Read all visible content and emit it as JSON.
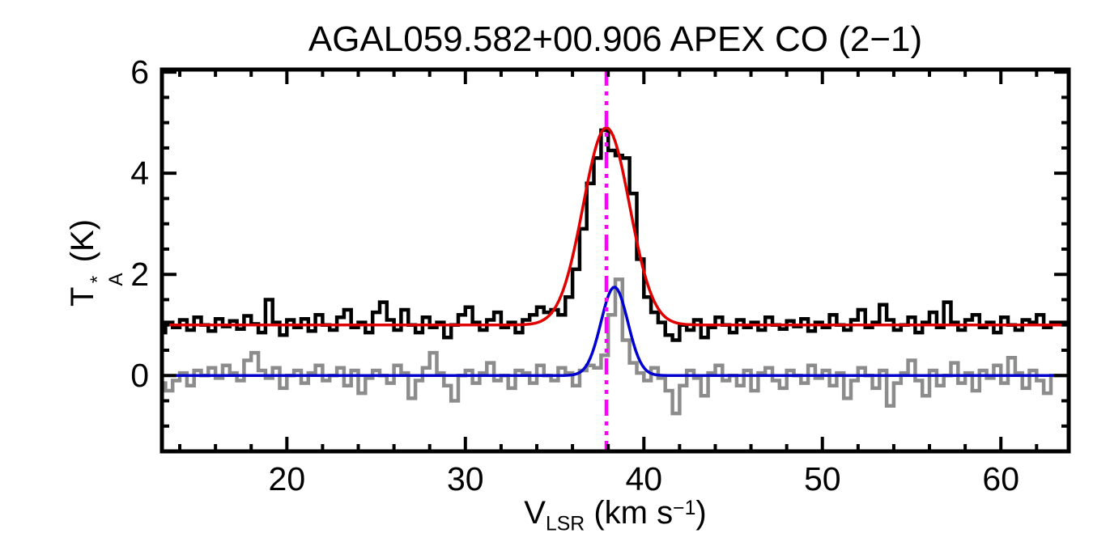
{
  "title": "AGAL059.582+00.906  APEX CO (2−1)",
  "chart_data": {
    "type": "line",
    "subtype": "spectral-line-histogram-with-gaussian-fits",
    "title": "AGAL059.582+00.906  APEX CO (2−1)",
    "xlabel_parts": {
      "v": "V",
      "sub": "LSR",
      "mid": " (km s",
      "sup": "−1",
      "end": ")"
    },
    "ylabel_parts": {
      "t": "T",
      "sup": "*",
      "sub": "A",
      "end": " (K)"
    },
    "xlim": [
      13.0,
      63.8
    ],
    "ylim": [
      -1.5,
      6.05
    ],
    "x_major_ticks": [
      20,
      30,
      40,
      50,
      60
    ],
    "x_minor_step": 2,
    "y_major_ticks": [
      0,
      2,
      4,
      6
    ],
    "y_minor_step": 0.5,
    "grid": false,
    "legend": false,
    "x_start": 13.0,
    "dx": 0.4,
    "series": [
      {
        "name": "observed-spectrum",
        "style": "histogram",
        "color": "#000000",
        "values": [
          0.85,
          1.05,
          0.95,
          1.1,
          0.9,
          1.15,
          1.0,
          0.88,
          1.12,
          0.97,
          1.08,
          0.92,
          1.18,
          1.02,
          0.85,
          1.5,
          1.05,
          0.8,
          1.1,
          0.95,
          1.12,
          0.88,
          1.2,
          1.0,
          0.9,
          1.15,
          1.3,
          0.95,
          1.05,
          0.85,
          1.25,
          1.45,
          1.1,
          0.9,
          1.3,
          1.0,
          0.85,
          1.15,
          0.95,
          1.05,
          0.75,
          1.0,
          1.2,
          1.35,
          1.05,
          0.9,
          1.1,
          1.25,
          0.95,
          1.05,
          0.85,
          1.1,
          1.2,
          1.35,
          1.25,
          1.3,
          1.2,
          1.55,
          2.1,
          2.9,
          3.8,
          4.3,
          4.85,
          4.45,
          4.35,
          4.3,
          3.6,
          2.3,
          1.55,
          1.25,
          1.05,
          0.8,
          0.7,
          1.0,
          0.9,
          1.1,
          0.75,
          0.95,
          1.15,
          1.0,
          0.85,
          1.1,
          0.95,
          1.05,
          0.9,
          1.15,
          1.0,
          0.92,
          1.08,
          0.97,
          1.12,
          0.88,
          1.05,
          0.95,
          1.2,
          1.0,
          0.9,
          1.1,
          1.3,
          0.95,
          1.05,
          1.4,
          1.1,
          0.9,
          1.0,
          1.15,
          0.85,
          1.05,
          1.25,
          0.95,
          1.45,
          1.05,
          0.9,
          1.1,
          1.2,
          0.95,
          1.05,
          0.85,
          1.15,
          1.0,
          0.9,
          1.1,
          1.05,
          1.2,
          0.95,
          1.05
        ]
      },
      {
        "name": "reference-spectrum",
        "style": "histogram",
        "color": "#8c8c8c",
        "values": [
          -0.15,
          -0.3,
          -0.1,
          0.05,
          -0.2,
          0.1,
          0.0,
          0.15,
          -0.05,
          0.2,
          0.05,
          -0.1,
          0.3,
          0.45,
          0.1,
          -0.05,
          0.15,
          -0.25,
          0.0,
          0.1,
          -0.15,
          0.05,
          0.2,
          -0.1,
          0.0,
          0.15,
          -0.2,
          0.1,
          -0.35,
          -0.05,
          0.1,
          0.0,
          -0.15,
          0.2,
          0.05,
          -0.45,
          -0.1,
          0.15,
          0.45,
          0.05,
          -0.2,
          -0.5,
          0.0,
          0.1,
          -0.15,
          0.05,
          0.25,
          -0.1,
          0.0,
          -0.25,
          0.1,
          0.05,
          -0.15,
          0.2,
          0.0,
          -0.1,
          0.15,
          0.05,
          -0.2,
          0.1,
          0.2,
          0.15,
          0.4,
          1.2,
          1.9,
          0.7,
          0.25,
          0.05,
          -0.1,
          0.15,
          -0.05,
          -0.3,
          -0.75,
          -0.2,
          0.1,
          -0.05,
          -0.4,
          0.05,
          0.2,
          -0.1,
          0.0,
          -0.2,
          0.1,
          -0.3,
          0.05,
          0.15,
          -0.1,
          -0.25,
          0.1,
          0.0,
          -0.15,
          0.2,
          -0.05,
          0.1,
          -0.2,
          0.05,
          -0.45,
          -0.1,
          0.15,
          0.0,
          -0.25,
          0.1,
          -0.6,
          -0.15,
          0.05,
          0.3,
          -0.1,
          -0.4,
          0.1,
          -0.2,
          0.0,
          0.25,
          -0.15,
          0.05,
          -0.3,
          0.1,
          -0.05,
          0.2,
          -0.15,
          0.35,
          0.05,
          -0.25,
          0.1,
          -0.1,
          -0.35,
          0.0
        ]
      }
    ],
    "fits": [
      {
        "name": "gaussian-fit-observed",
        "color": "#e00000",
        "baseline": 1.0,
        "amplitude": 3.9,
        "center": 37.9,
        "sigma": 1.3
      },
      {
        "name": "gaussian-fit-reference",
        "color": "#0000d0",
        "baseline": 0.0,
        "amplitude": 1.75,
        "center": 38.35,
        "sigma": 0.75
      }
    ],
    "marker_line": {
      "x": 37.9,
      "color": "#ff00ff",
      "style": "dash-dot-dot"
    }
  },
  "colors": {
    "background": "#ffffff",
    "axis": "#000000",
    "observed": "#000000",
    "reference": "#8c8c8c",
    "fit_observed": "#e00000",
    "fit_reference": "#0000d0",
    "marker": "#ff00ff"
  }
}
